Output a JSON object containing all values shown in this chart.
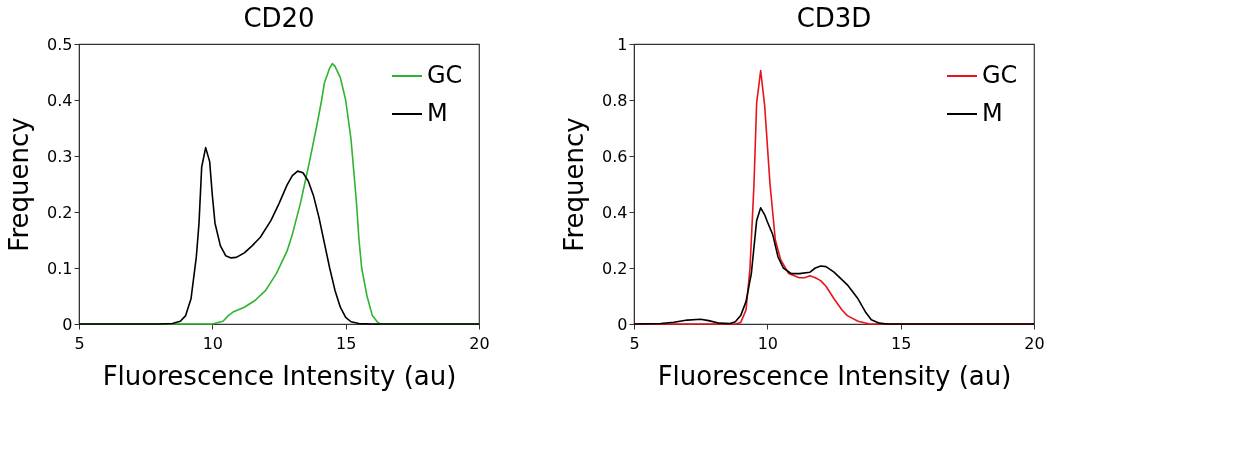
{
  "chart_data": [
    {
      "type": "line",
      "title": "CD20",
      "xlabel": "Fluorescence Intensity (au)",
      "ylabel": "Frequency",
      "xlim": [
        5,
        20
      ],
      "xticks": [
        5,
        10,
        15,
        20
      ],
      "ylim": [
        0,
        0.5
      ],
      "yticks": [
        0,
        0.1,
        0.2,
        0.3,
        0.4,
        0.5
      ],
      "grid": false,
      "legend": "top right",
      "series": [
        {
          "name": "GC",
          "color": "#2db52d",
          "x": [
            5,
            10,
            10.4,
            10.6,
            10.8,
            11.2,
            11.6,
            12.0,
            12.4,
            12.8,
            13.0,
            13.3,
            13.6,
            13.9,
            14.1,
            14.2,
            14.4,
            14.5,
            14.6,
            14.8,
            15.0,
            15.2,
            15.4,
            15.5,
            15.6,
            15.8,
            16.0,
            16.2,
            16.3,
            20
          ],
          "values": [
            0,
            0,
            0.005,
            0.015,
            0.022,
            0.03,
            0.042,
            0.06,
            0.09,
            0.13,
            0.16,
            0.215,
            0.28,
            0.35,
            0.4,
            0.43,
            0.457,
            0.465,
            0.46,
            0.44,
            0.4,
            0.33,
            0.22,
            0.15,
            0.1,
            0.05,
            0.015,
            0.003,
            0,
            0
          ]
        },
        {
          "name": "M",
          "color": "#000000",
          "x": [
            5,
            8,
            8.5,
            8.8,
            9.0,
            9.2,
            9.4,
            9.5,
            9.6,
            9.75,
            9.9,
            10.0,
            10.1,
            10.3,
            10.5,
            10.7,
            10.9,
            11.2,
            11.5,
            11.8,
            12.2,
            12.5,
            12.8,
            13.0,
            13.2,
            13.4,
            13.6,
            13.8,
            14.0,
            14.2,
            14.4,
            14.6,
            14.8,
            15.0,
            15.2,
            15.5,
            16,
            20
          ],
          "values": [
            0,
            0,
            0.001,
            0.005,
            0.015,
            0.045,
            0.12,
            0.18,
            0.28,
            0.315,
            0.29,
            0.23,
            0.18,
            0.14,
            0.122,
            0.118,
            0.119,
            0.127,
            0.14,
            0.155,
            0.185,
            0.215,
            0.248,
            0.265,
            0.273,
            0.27,
            0.255,
            0.228,
            0.19,
            0.145,
            0.1,
            0.06,
            0.03,
            0.012,
            0.004,
            0.001,
            0,
            0
          ]
        }
      ]
    },
    {
      "type": "line",
      "title": "CD3D",
      "xlabel": "Fluorescence Intensity (au)",
      "ylabel": "Frequency",
      "xlim": [
        5,
        20
      ],
      "xticks": [
        5,
        10,
        15,
        20
      ],
      "ylim": [
        0,
        1
      ],
      "yticks": [
        0,
        0.2,
        0.4,
        0.6,
        0.8,
        1
      ],
      "grid": false,
      "legend": "top right",
      "series": [
        {
          "name": "GC",
          "color": "#e8141c",
          "x": [
            5,
            8.8,
            9.0,
            9.2,
            9.35,
            9.5,
            9.6,
            9.75,
            9.9,
            10.1,
            10.3,
            10.5,
            10.8,
            11.2,
            11.4,
            11.6,
            11.8,
            12.0,
            12.2,
            12.5,
            12.8,
            13.0,
            13.4,
            13.8,
            14,
            20
          ],
          "values": [
            0,
            0,
            0.005,
            0.05,
            0.2,
            0.5,
            0.79,
            0.905,
            0.78,
            0.5,
            0.3,
            0.23,
            0.18,
            0.165,
            0.165,
            0.172,
            0.165,
            0.155,
            0.135,
            0.09,
            0.05,
            0.03,
            0.01,
            0.001,
            0,
            0
          ]
        },
        {
          "name": "M",
          "color": "#000000",
          "x": [
            5,
            6,
            6.5,
            7.0,
            7.5,
            7.8,
            8.2,
            8.6,
            8.8,
            9.0,
            9.2,
            9.4,
            9.6,
            9.75,
            9.9,
            10.0,
            10.2,
            10.4,
            10.6,
            10.9,
            11.2,
            11.6,
            11.8,
            12.0,
            12.2,
            12.5,
            13.0,
            13.4,
            13.7,
            13.9,
            14.2,
            14.5,
            20
          ],
          "values": [
            0,
            0.002,
            0.006,
            0.014,
            0.017,
            0.012,
            0.003,
            0.002,
            0.008,
            0.03,
            0.08,
            0.18,
            0.37,
            0.415,
            0.39,
            0.365,
            0.32,
            0.24,
            0.2,
            0.18,
            0.18,
            0.185,
            0.2,
            0.207,
            0.205,
            0.185,
            0.14,
            0.09,
            0.04,
            0.015,
            0.003,
            0,
            0
          ]
        }
      ]
    }
  ]
}
